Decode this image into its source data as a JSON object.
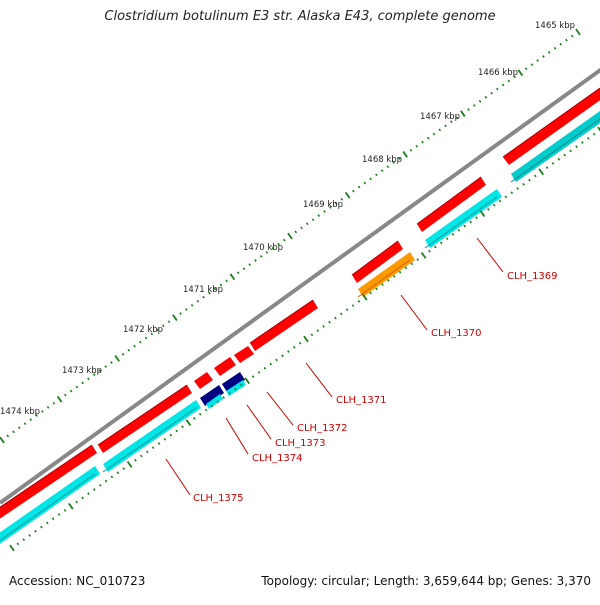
{
  "title": "Clostridium botulinum E3 str. Alaska E43, complete genome",
  "accession": "Accession: NC_010723",
  "summary": "Topology: circular; Length: 3,659,644 bp; Genes: 3,370",
  "colors": {
    "backbone": "#888888",
    "forward": "#ff0000",
    "reverse": "#00e5e5",
    "orange": "#ff9900",
    "navy": "#000080",
    "tick": "#1a7f1a",
    "label": "#cc0000"
  },
  "kbp_labels": [
    "1465 kbp",
    "1466 kbp",
    "1467 kbp",
    "1468 kbp",
    "1469 kbp",
    "1470 kbp",
    "1471 kbp",
    "1472 kbp",
    "1473 kbp",
    "1474 kbp"
  ],
  "gene_labels": [
    "CLH_1369",
    "CLH_1370",
    "CLH_1371",
    "CLH_1372",
    "CLH_1373",
    "CLH_1374",
    "CLH_1375"
  ]
}
